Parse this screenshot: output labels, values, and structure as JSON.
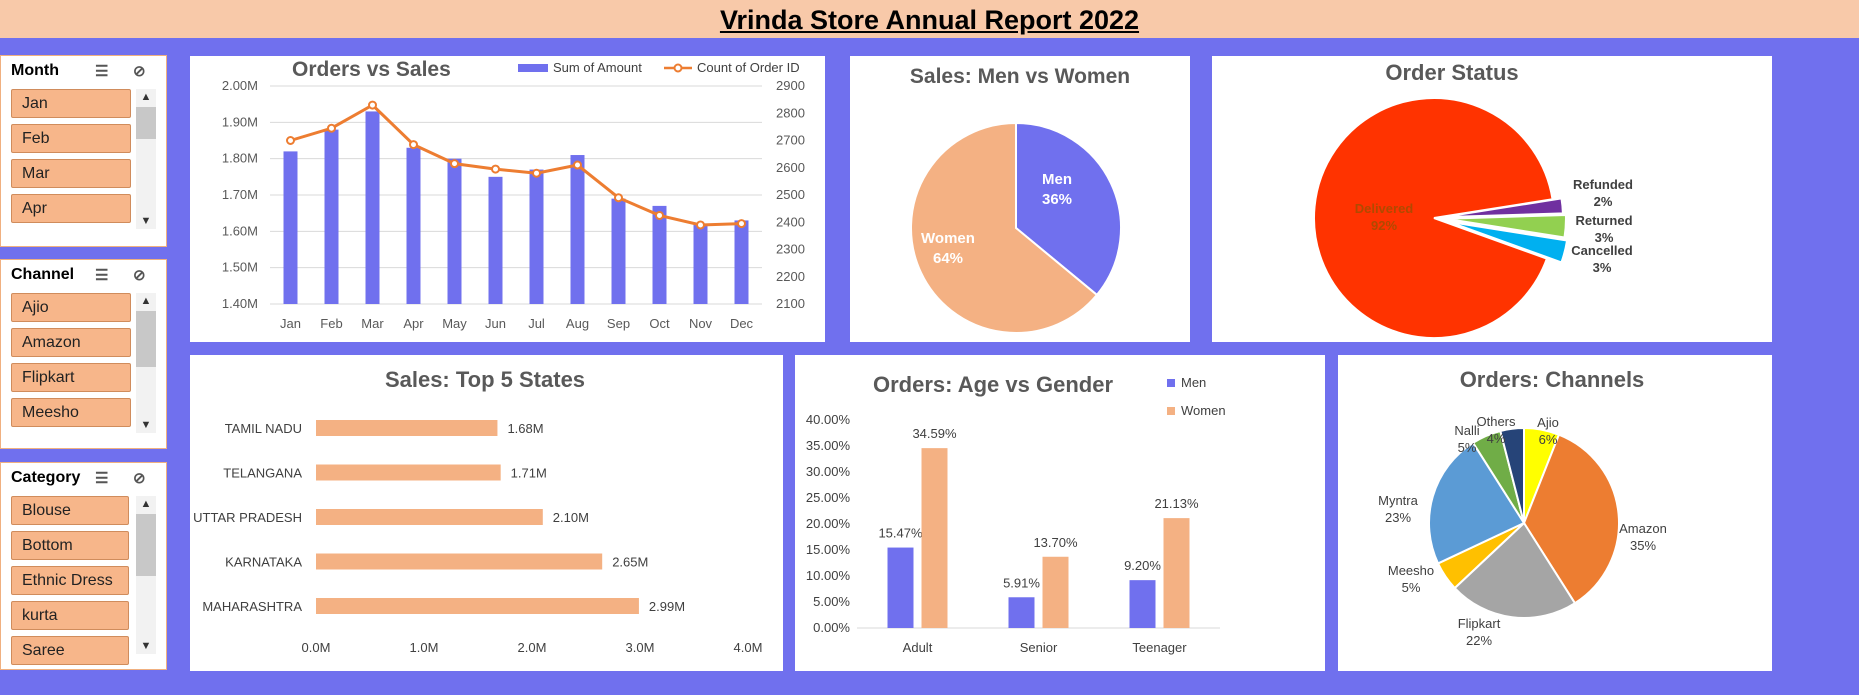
{
  "report_title": "Vrinda Store Annual Report 2022",
  "slicers": {
    "month": {
      "label": "Month",
      "items": [
        "Jan",
        "Feb",
        "Mar",
        "Apr"
      ]
    },
    "channel": {
      "label": "Channel",
      "items": [
        "Ajio",
        "Amazon",
        "Flipkart",
        "Meesho"
      ]
    },
    "category": {
      "label": "Category",
      "items": [
        "Blouse",
        "Bottom",
        "Ethnic Dress",
        "kurta",
        "Saree"
      ]
    }
  },
  "colors": {
    "purple": "#7070ee",
    "peach": "#f4b183",
    "orange": "#ed7d31",
    "red": "#ff3300"
  },
  "chart_data": [
    {
      "id": "orders_vs_sales",
      "type": "bar",
      "title": "Orders vs Sales",
      "categories": [
        "Jan",
        "Feb",
        "Mar",
        "Apr",
        "May",
        "Jun",
        "Jul",
        "Aug",
        "Sep",
        "Oct",
        "Nov",
        "Dec"
      ],
      "series": [
        {
          "name": "Sum of Amount",
          "type": "bar",
          "axis": "left",
          "values": [
            1.82,
            1.88,
            1.93,
            1.83,
            1.8,
            1.75,
            1.77,
            1.81,
            1.69,
            1.67,
            1.62,
            1.63
          ]
        },
        {
          "name": "Count of Order ID",
          "type": "line",
          "axis": "right",
          "values": [
            2700,
            2745,
            2830,
            2685,
            2615,
            2595,
            2580,
            2610,
            2490,
            2425,
            2390,
            2395
          ]
        }
      ],
      "left_axis": {
        "ticks": [
          "1.40M",
          "1.50M",
          "1.60M",
          "1.70M",
          "1.80M",
          "1.90M",
          "2.00M"
        ],
        "range": [
          1.4,
          2.0
        ]
      },
      "right_axis": {
        "ticks": [
          "2100",
          "2200",
          "2300",
          "2400",
          "2500",
          "2600",
          "2700",
          "2800",
          "2900"
        ],
        "range": [
          2100,
          2900
        ]
      },
      "legend": "top-right"
    },
    {
      "id": "men_vs_women",
      "type": "pie",
      "title": "Sales: Men vs Women",
      "slices": [
        {
          "label": "Men",
          "pct": "36%",
          "value": 36,
          "color": "#7070ee"
        },
        {
          "label": "Women",
          "pct": "64%",
          "value": 64,
          "color": "#f4b183"
        }
      ]
    },
    {
      "id": "order_status",
      "type": "pie",
      "title": "Order Status",
      "slices": [
        {
          "label": "Delivered",
          "pct": "92%",
          "value": 92,
          "color": "#ff3300"
        },
        {
          "label": "Refunded",
          "pct": "2%",
          "value": 2,
          "color": "#7030a0"
        },
        {
          "label": "Returned",
          "pct": "3%",
          "value": 3,
          "color": "#92d050"
        },
        {
          "label": "Cancelled",
          "pct": "3%",
          "value": 3,
          "color": "#00b0f0"
        }
      ]
    },
    {
      "id": "top_states",
      "type": "bar",
      "orientation": "horizontal",
      "title": "Sales: Top 5 States",
      "categories": [
        "TAMIL NADU",
        "TELANGANA",
        "UTTAR PRADESH",
        "KARNATAKA",
        "MAHARASHTRA"
      ],
      "values": [
        1.68,
        1.71,
        2.1,
        2.65,
        2.99
      ],
      "value_labels": [
        "1.68M",
        "1.71M",
        "2.10M",
        "2.65M",
        "2.99M"
      ],
      "x_ticks": [
        "0.0M",
        "1.0M",
        "2.0M",
        "3.0M",
        "4.0M"
      ],
      "xlim": [
        0,
        4
      ]
    },
    {
      "id": "age_vs_gender",
      "type": "bar",
      "title": "Orders: Age vs Gender",
      "categories": [
        "Adult",
        "Senior",
        "Teenager"
      ],
      "series": [
        {
          "name": "Men",
          "values": [
            15.47,
            5.91,
            9.2
          ],
          "labels": [
            "15.47%",
            "5.91%",
            "9.20%"
          ],
          "color": "#7070ee"
        },
        {
          "name": "Women",
          "values": [
            34.59,
            13.7,
            21.13
          ],
          "labels": [
            "34.59%",
            "13.70%",
            "21.13%"
          ],
          "color": "#f4b183"
        }
      ],
      "y_ticks": [
        "0.00%",
        "5.00%",
        "10.00%",
        "15.00%",
        "20.00%",
        "25.00%",
        "30.00%",
        "35.00%",
        "40.00%"
      ],
      "ylim": [
        0,
        40
      ],
      "legend": "top-right"
    },
    {
      "id": "channels",
      "type": "pie",
      "title": "Orders: Channels",
      "slices": [
        {
          "label": "Ajio",
          "pct": "6%",
          "value": 6,
          "color": "#ffff00"
        },
        {
          "label": "Amazon",
          "pct": "35%",
          "value": 35,
          "color": "#ed7d31"
        },
        {
          "label": "Flipkart",
          "pct": "22%",
          "value": 22,
          "color": "#a5a5a5"
        },
        {
          "label": "Meesho",
          "pct": "5%",
          "value": 5,
          "color": "#ffc000"
        },
        {
          "label": "Myntra",
          "pct": "23%",
          "value": 23,
          "color": "#5b9bd5"
        },
        {
          "label": "Nalli",
          "pct": "5%",
          "value": 5,
          "color": "#70ad47"
        },
        {
          "label": "Others",
          "pct": "4%",
          "value": 4,
          "color": "#264478"
        }
      ]
    }
  ]
}
